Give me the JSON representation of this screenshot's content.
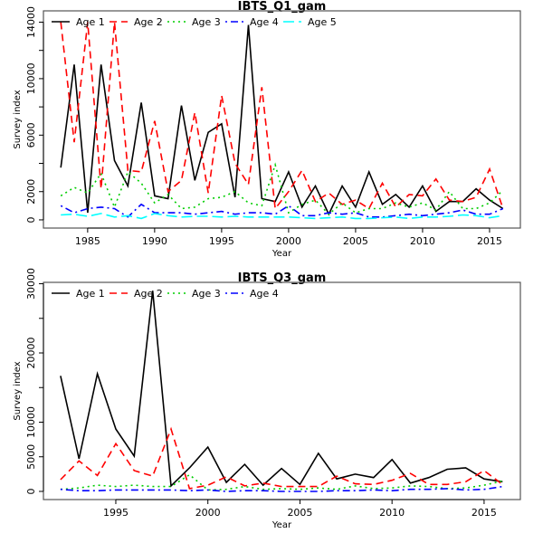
{
  "chart_data": [
    {
      "type": "line",
      "title": "IBTS_Q1_gam",
      "xlabel": "Year",
      "ylabel": "Survey index",
      "xlim": [
        1981.7,
        2017.3
      ],
      "ylim": [
        -580,
        14800
      ],
      "xticks": [
        1985,
        1990,
        1995,
        2000,
        2005,
        2010,
        2015
      ],
      "yticks": [
        0,
        2000,
        4000,
        6000,
        8000,
        10000,
        12000,
        14000
      ],
      "ytick_labels": [
        "0",
        "2000",
        "",
        "6000",
        "",
        "10000",
        "",
        "14000"
      ],
      "legend": "top-left",
      "grid": false,
      "x": [
        1983,
        1984,
        1985,
        1986,
        1987,
        1988,
        1989,
        1990,
        1991,
        1992,
        1993,
        1994,
        1995,
        1996,
        1997,
        1998,
        1999,
        2000,
        2001,
        2002,
        2003,
        2004,
        2005,
        2006,
        2007,
        2008,
        2009,
        2010,
        2011,
        2012,
        2013,
        2014,
        2015,
        2016
      ],
      "series": [
        {
          "name": "Age 1",
          "color": "#000000",
          "dash": "solid",
          "values": [
            3700,
            11000,
            500,
            11000,
            4200,
            2400,
            8300,
            1700,
            1500,
            8100,
            2800,
            6200,
            6800,
            1600,
            13800,
            1500,
            1300,
            3400,
            900,
            2400,
            400,
            2400,
            900,
            3400,
            1100,
            1800,
            900,
            2400,
            600,
            1300,
            1300,
            2200,
            1400,
            800
          ]
        },
        {
          "name": "Age 2",
          "color": "#ff0000",
          "dash": "dashed",
          "values": [
            14000,
            5500,
            14000,
            2200,
            14000,
            3500,
            3400,
            7000,
            2000,
            2800,
            7600,
            1900,
            8800,
            4000,
            2500,
            9400,
            800,
            2000,
            3500,
            1300,
            1900,
            1100,
            1400,
            800,
            2600,
            900,
            1800,
            1700,
            2900,
            1400,
            1300,
            1600,
            3600,
            800
          ]
        },
        {
          "name": "Age 3",
          "color": "#00cd00",
          "dash": "dotted",
          "values": [
            1700,
            2300,
            1900,
            3300,
            900,
            3400,
            2600,
            1200,
            1800,
            800,
            900,
            1500,
            1600,
            2000,
            1200,
            1000,
            3900,
            500,
            1100,
            1400,
            400,
            1200,
            500,
            800,
            800,
            1200,
            900,
            1200,
            700,
            2000,
            800,
            800,
            1200,
            2100
          ]
        },
        {
          "name": "Age 4",
          "color": "#0000ff",
          "dash": "dotdash",
          "values": [
            1000,
            500,
            800,
            900,
            800,
            200,
            1100,
            500,
            500,
            500,
            400,
            500,
            600,
            400,
            500,
            500,
            400,
            1000,
            300,
            300,
            500,
            400,
            500,
            200,
            200,
            300,
            400,
            300,
            400,
            500,
            700,
            400,
            400,
            800
          ]
        },
        {
          "name": "Age 5",
          "color": "#00ffff",
          "dash": "longdash",
          "values": [
            350,
            400,
            250,
            450,
            200,
            300,
            100,
            450,
            300,
            200,
            250,
            250,
            200,
            250,
            200,
            200,
            200,
            200,
            150,
            100,
            150,
            200,
            100,
            100,
            150,
            200,
            100,
            200,
            200,
            250,
            350,
            300,
            150,
            300
          ]
        }
      ]
    },
    {
      "type": "line",
      "title": "IBTS_Q3_gam",
      "xlabel": "Year",
      "ylabel": "Survey index",
      "xlim": [
        1991.07,
        2016.97
      ],
      "ylim": [
        -1180,
        30200
      ],
      "xticks": [
        1995,
        2000,
        2005,
        2010,
        2015
      ],
      "yticks": [
        0,
        5000,
        10000,
        15000,
        20000,
        25000,
        30000
      ],
      "ytick_labels": [
        "0",
        "5000",
        "10000",
        "",
        "20000",
        "",
        "30000"
      ],
      "legend": "top-left",
      "grid": false,
      "x": [
        1992,
        1993,
        1994,
        1995,
        1996,
        1997,
        1998,
        1999,
        2000,
        2001,
        2002,
        2003,
        2004,
        2005,
        2006,
        2007,
        2008,
        2009,
        2010,
        2011,
        2012,
        2013,
        2014,
        2015,
        2016
      ],
      "series": [
        {
          "name": "Age 1",
          "color": "#000000",
          "dash": "solid",
          "values": [
            16700,
            4700,
            17000,
            9000,
            5100,
            29000,
            800,
            3400,
            6400,
            1300,
            3900,
            900,
            3300,
            1000,
            5500,
            1800,
            2500,
            2000,
            4600,
            1200,
            2000,
            3200,
            3400,
            1800,
            1400
          ]
        },
        {
          "name": "Age 2",
          "color": "#ff0000",
          "dash": "dashed",
          "values": [
            1700,
            4400,
            2300,
            6900,
            3000,
            2200,
            9000,
            400,
            900,
            2100,
            800,
            1200,
            700,
            700,
            700,
            2200,
            1100,
            1000,
            1600,
            2600,
            1000,
            1000,
            1400,
            3000,
            1000
          ]
        },
        {
          "name": "Age 3",
          "color": "#00cd00",
          "dash": "dotted",
          "values": [
            300,
            500,
            900,
            700,
            900,
            700,
            700,
            2400,
            200,
            300,
            700,
            300,
            400,
            300,
            500,
            300,
            800,
            400,
            500,
            800,
            700,
            400,
            500,
            900,
            1500
          ]
        },
        {
          "name": "Age 4",
          "color": "#0000ff",
          "dash": "dotdash",
          "values": [
            300,
            100,
            100,
            200,
            200,
            200,
            200,
            100,
            200,
            0,
            100,
            100,
            0,
            0,
            0,
            100,
            100,
            200,
            100,
            300,
            300,
            400,
            200,
            300,
            700
          ]
        }
      ]
    }
  ]
}
